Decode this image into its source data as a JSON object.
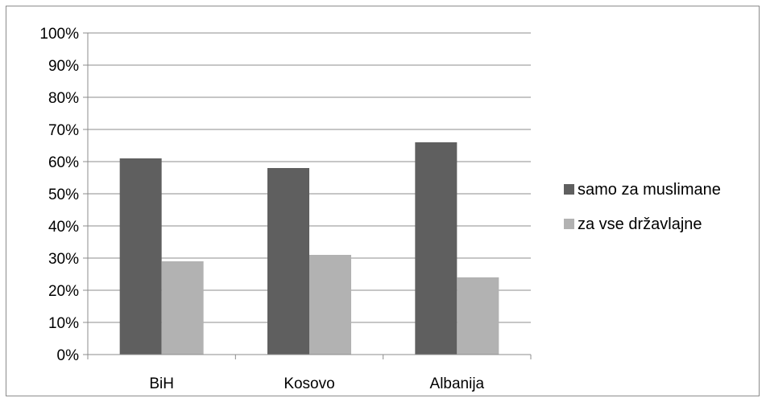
{
  "chart_data": {
    "type": "bar",
    "categories": [
      "BiH",
      "Kosovo",
      "Albanija"
    ],
    "series": [
      {
        "name": "samo za muslimane",
        "values": [
          61,
          58,
          66
        ],
        "color": "#5f5f5f"
      },
      {
        "name": "za vse državlajne",
        "values": [
          29,
          31,
          24
        ],
        "color": "#b2b2b2"
      }
    ],
    "ylim": [
      0,
      100
    ],
    "yticks": [
      "0%",
      "10%",
      "20%",
      "30%",
      "40%",
      "50%",
      "60%",
      "70%",
      "80%",
      "90%",
      "100%"
    ],
    "grid": true,
    "legend_position": "right",
    "title": "",
    "xlabel": "",
    "ylabel": ""
  }
}
